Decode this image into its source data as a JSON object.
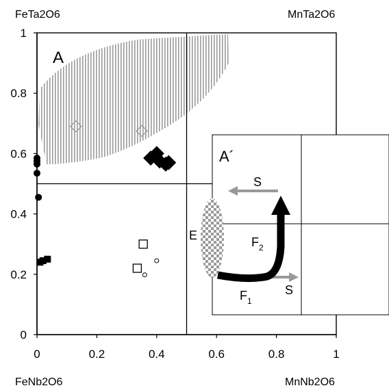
{
  "chart_data": {
    "type": "scatter",
    "title": "",
    "xlabel": "",
    "ylabel": "",
    "xlim": [
      0,
      1
    ],
    "ylim": [
      0,
      1
    ],
    "x_ticks": [
      "0",
      "0.2",
      "0.4",
      "0.6",
      "0.8",
      "1"
    ],
    "y_ticks": [
      "0",
      "0.2",
      "0.4",
      "0.6",
      "0.8",
      "1"
    ],
    "grid": false,
    "corner_labels": {
      "top_left": "FeTa2O6",
      "top_right": "MnTa2O6",
      "bottom_left": "FeNb2O6",
      "bottom_right": "MnNb2O6"
    },
    "divider_lines": {
      "x": 0.5,
      "y": 0.5
    },
    "field_label": "A",
    "series": [
      {
        "marker": "filled-circle",
        "color": "#000000",
        "points": [
          [
            0.0,
            0.585
          ],
          [
            0.0,
            0.575
          ],
          [
            0.0,
            0.565
          ],
          [
            0.0,
            0.535
          ],
          [
            0.005,
            0.455
          ]
        ]
      },
      {
        "marker": "filled-square",
        "color": "#000000",
        "points": [
          [
            0.01,
            0.24
          ],
          [
            0.02,
            0.245
          ],
          [
            0.035,
            0.25
          ]
        ]
      },
      {
        "marker": "filled-diamond",
        "color": "#000000",
        "points": [
          [
            0.38,
            0.585
          ],
          [
            0.4,
            0.6
          ],
          [
            0.41,
            0.575
          ],
          [
            0.43,
            0.565
          ],
          [
            0.44,
            0.57
          ]
        ]
      },
      {
        "marker": "open-diamond",
        "color": "#999999",
        "points": [
          [
            0.13,
            0.69
          ],
          [
            0.35,
            0.675
          ]
        ]
      },
      {
        "marker": "open-square",
        "color": "#000000",
        "points": [
          [
            0.355,
            0.3
          ],
          [
            0.335,
            0.22
          ]
        ]
      },
      {
        "marker": "open-circle",
        "color": "#000000",
        "points": [
          [
            0.4,
            0.245
          ],
          [
            0.36,
            0.198
          ]
        ]
      }
    ],
    "inset": {
      "label": "A´",
      "e_label": "E",
      "f1_label": "F",
      "f1_sub": "1",
      "f2_label": "F",
      "f2_sub": "2",
      "s_upper": "S",
      "s_lower": "S"
    }
  }
}
